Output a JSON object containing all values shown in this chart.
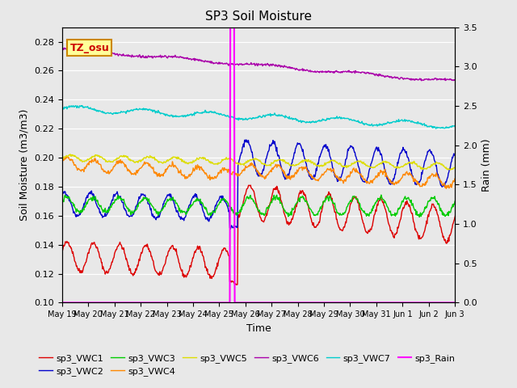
{
  "title": "SP3 Soil Moisture",
  "ylabel_left": "Soil Moisture (m3/m3)",
  "ylabel_right": "Rain (mm)",
  "xlabel": "Time",
  "ylim_left": [
    0.1,
    0.29
  ],
  "ylim_right": [
    0.0,
    3.5
  ],
  "bg_color": "#e8e8e8",
  "annotation_label": "TZ_osu",
  "annotation_color": "#cc0000",
  "annotation_bg": "#ffff99",
  "annotation_border": "#cc8800",
  "series_colors": {
    "VWC1": "#dd0000",
    "VWC2": "#0000cc",
    "VWC3": "#00cc00",
    "VWC4": "#ff8800",
    "VWC5": "#dddd00",
    "VWC6": "#aa00aa",
    "VWC7": "#00cccc",
    "Rain": "#ff00ff"
  },
  "legend_labels": [
    "sp3_VWC1",
    "sp3_VWC2",
    "sp3_VWC3",
    "sp3_VWC4",
    "sp3_VWC5",
    "sp3_VWC6",
    "sp3_VWC7",
    "sp3_Rain"
  ],
  "yticks_left": [
    0.1,
    0.12,
    0.14,
    0.16,
    0.18,
    0.2,
    0.22,
    0.24,
    0.26,
    0.28
  ],
  "yticks_right": [
    0.0,
    0.5,
    1.0,
    1.5,
    2.0,
    2.5,
    3.0,
    3.5
  ],
  "rain_spike_day": 6.5,
  "n_days": 16,
  "n_pts_per_day": 48
}
